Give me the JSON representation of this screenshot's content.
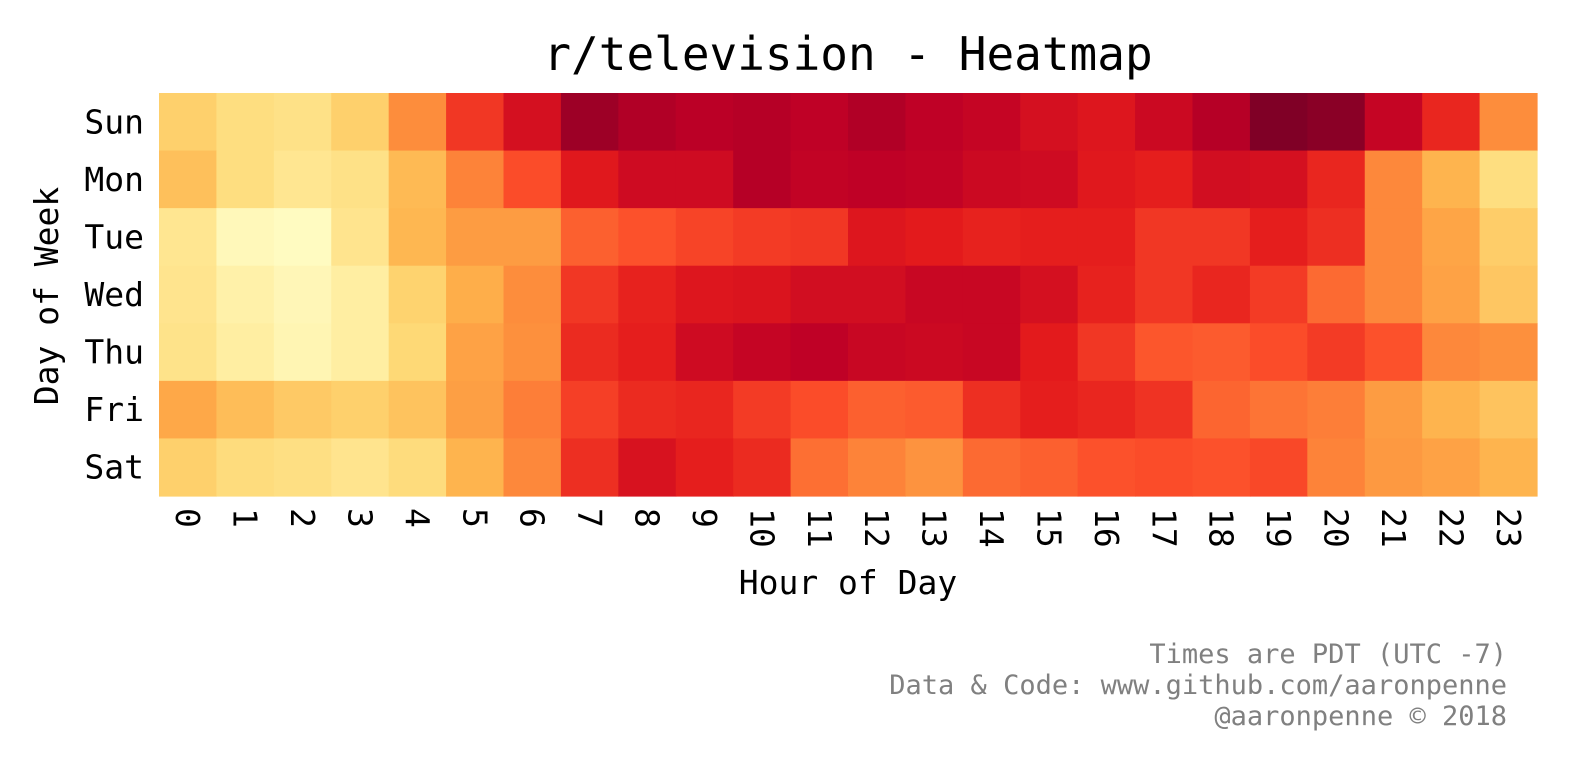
{
  "chart_data": {
    "type": "heatmap",
    "title": "r/television - Heatmap",
    "xlabel": "Hour of Day",
    "ylabel": "Day of Week",
    "x": [
      "0",
      "1",
      "2",
      "3",
      "4",
      "5",
      "6",
      "7",
      "8",
      "9",
      "10",
      "11",
      "12",
      "13",
      "14",
      "15",
      "16",
      "17",
      "18",
      "19",
      "20",
      "21",
      "22",
      "23"
    ],
    "y": [
      "Sun",
      "Mon",
      "Tue",
      "Wed",
      "Thu",
      "Fri",
      "Sat"
    ],
    "colormap": "YlOrRd",
    "value_range": [
      0,
      1
    ],
    "values": [
      [
        0.28,
        0.22,
        0.2,
        0.28,
        0.5,
        0.68,
        0.8,
        0.94,
        0.9,
        0.88,
        0.89,
        0.87,
        0.9,
        0.87,
        0.85,
        0.8,
        0.77,
        0.83,
        0.89,
        1.0,
        0.98,
        0.85,
        0.72,
        0.5
      ],
      [
        0.33,
        0.22,
        0.17,
        0.2,
        0.35,
        0.52,
        0.63,
        0.76,
        0.82,
        0.82,
        0.89,
        0.86,
        0.87,
        0.86,
        0.83,
        0.82,
        0.76,
        0.74,
        0.81,
        0.8,
        0.72,
        0.51,
        0.37,
        0.22
      ],
      [
        0.17,
        0.05,
        0.03,
        0.18,
        0.36,
        0.45,
        0.45,
        0.59,
        0.62,
        0.65,
        0.67,
        0.68,
        0.77,
        0.75,
        0.73,
        0.74,
        0.74,
        0.68,
        0.68,
        0.74,
        0.7,
        0.51,
        0.42,
        0.29
      ],
      [
        0.18,
        0.1,
        0.06,
        0.12,
        0.27,
        0.39,
        0.5,
        0.68,
        0.73,
        0.77,
        0.78,
        0.81,
        0.81,
        0.84,
        0.84,
        0.8,
        0.73,
        0.68,
        0.72,
        0.67,
        0.57,
        0.51,
        0.43,
        0.31
      ],
      [
        0.19,
        0.12,
        0.07,
        0.12,
        0.25,
        0.43,
        0.49,
        0.71,
        0.74,
        0.82,
        0.85,
        0.87,
        0.84,
        0.83,
        0.84,
        0.75,
        0.68,
        0.61,
        0.6,
        0.63,
        0.67,
        0.62,
        0.51,
        0.49
      ],
      [
        0.41,
        0.34,
        0.3,
        0.28,
        0.32,
        0.44,
        0.53,
        0.66,
        0.71,
        0.72,
        0.67,
        0.63,
        0.59,
        0.6,
        0.7,
        0.74,
        0.72,
        0.69,
        0.58,
        0.55,
        0.53,
        0.45,
        0.37,
        0.32
      ],
      [
        0.28,
        0.23,
        0.21,
        0.18,
        0.23,
        0.37,
        0.51,
        0.7,
        0.79,
        0.74,
        0.71,
        0.56,
        0.52,
        0.48,
        0.57,
        0.59,
        0.62,
        0.63,
        0.62,
        0.64,
        0.52,
        0.46,
        0.43,
        0.37
      ]
    ],
    "legend": "none",
    "grid": false
  },
  "notes": {
    "line1": "Times are PDT (UTC -7)",
    "line2": "Data & Code: www.github.com/aaronpenne",
    "line3": "@aaronpenne © 2018"
  }
}
